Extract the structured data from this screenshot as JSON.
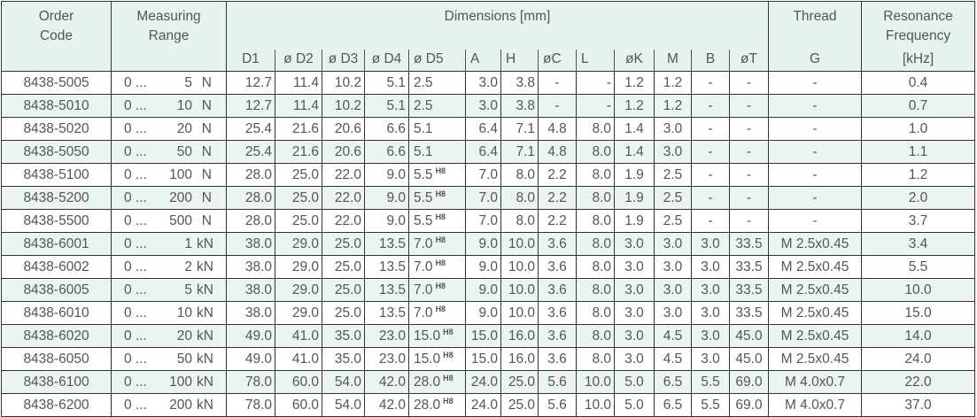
{
  "header": {
    "order_code": "Order\nCode",
    "order_code_l1": "Order",
    "order_code_l2": "Code",
    "range_l1": "Measuring",
    "range_l2": "Range",
    "dimensions": "Dimensions [mm]",
    "thread": "Thread",
    "thread_sub": "G",
    "freq_l1": "Resonance",
    "freq_l2": "Frequency",
    "freq_unit": "[kHz]",
    "dim_columns": [
      "D1",
      "ø D2",
      "ø D3",
      "ø D4",
      "ø D5",
      "A",
      "H",
      "øC",
      "L",
      "øK",
      "M",
      "B",
      "øT"
    ]
  },
  "rows": [
    {
      "code": "8438-5005",
      "range": "5",
      "unit": "N",
      "d": [
        "12.7",
        "11.4",
        "10.2",
        "5.1",
        "2.5",
        "3.0",
        "3.8",
        "-",
        "-",
        "1.2",
        "1.2",
        "-",
        "-"
      ],
      "h8": false,
      "thread": "-",
      "freq": "0.4"
    },
    {
      "code": "8438-5010",
      "range": "10",
      "unit": "N",
      "d": [
        "12.7",
        "11.4",
        "10.2",
        "5.1",
        "2.5",
        "3.0",
        "3.8",
        "-",
        "-",
        "1.2",
        "1.2",
        "-",
        "-"
      ],
      "h8": false,
      "thread": "-",
      "freq": "0.7"
    },
    {
      "code": "8438-5020",
      "range": "20",
      "unit": "N",
      "d": [
        "25.4",
        "21.6",
        "20.6",
        "6.6",
        "5.1",
        "6.4",
        "7.1",
        "4.8",
        "8.0",
        "1.4",
        "3.0",
        "-",
        "-"
      ],
      "h8": false,
      "thread": "-",
      "freq": "1.0"
    },
    {
      "code": "8438-5050",
      "range": "50",
      "unit": "N",
      "d": [
        "25.4",
        "21.6",
        "20.6",
        "6.6",
        "5.1",
        "6.4",
        "7.1",
        "4.8",
        "8.0",
        "1.4",
        "3.0",
        "-",
        "-"
      ],
      "h8": false,
      "thread": "-",
      "freq": "1.1"
    },
    {
      "code": "8438-5100",
      "range": "100",
      "unit": "N",
      "d": [
        "28.0",
        "25.0",
        "22.0",
        "9.0",
        "5.5",
        "7.0",
        "8.0",
        "2.2",
        "8.0",
        "1.9",
        "2.5",
        "-",
        "-"
      ],
      "h8": true,
      "thread": "-",
      "freq": "1.2"
    },
    {
      "code": "8438-5200",
      "range": "200",
      "unit": "N",
      "d": [
        "28.0",
        "25.0",
        "22.0",
        "9.0",
        "5.5",
        "7.0",
        "8.0",
        "2.2",
        "8.0",
        "1.9",
        "2.5",
        "-",
        "-"
      ],
      "h8": true,
      "thread": "-",
      "freq": "2.0"
    },
    {
      "code": "8438-5500",
      "range": "500",
      "unit": "N",
      "d": [
        "28.0",
        "25.0",
        "22.0",
        "9.0",
        "5.5",
        "7.0",
        "8.0",
        "2.2",
        "8.0",
        "1.9",
        "2.5",
        "-",
        "-"
      ],
      "h8": true,
      "thread": "-",
      "freq": "3.7"
    },
    {
      "code": "8438-6001",
      "range": "1",
      "unit": "kN",
      "d": [
        "38.0",
        "29.0",
        "25.0",
        "13.5",
        "7.0",
        "9.0",
        "10.0",
        "3.6",
        "8.0",
        "3.0",
        "3.0",
        "3.0",
        "33.5"
      ],
      "h8": true,
      "thread": "M 2.5x0.45",
      "freq": "3.4"
    },
    {
      "code": "8438-6002",
      "range": "2",
      "unit": "kN",
      "d": [
        "38.0",
        "29.0",
        "25.0",
        "13.5",
        "7.0",
        "9.0",
        "10.0",
        "3.6",
        "8.0",
        "3.0",
        "3.0",
        "3.0",
        "33.5"
      ],
      "h8": true,
      "thread": "M 2.5x0.45",
      "freq": "5.5"
    },
    {
      "code": "8438-6005",
      "range": "5",
      "unit": "kN",
      "d": [
        "38.0",
        "29.0",
        "25.0",
        "13.5",
        "7.0",
        "9.0",
        "10.0",
        "3.6",
        "8.0",
        "3.0",
        "3.0",
        "3.0",
        "33.5"
      ],
      "h8": true,
      "thread": "M 2.5x0.45",
      "freq": "10.0"
    },
    {
      "code": "8438-6010",
      "range": "10",
      "unit": "kN",
      "d": [
        "38.0",
        "29.0",
        "25.0",
        "13.5",
        "7.0",
        "9.0",
        "10.0",
        "3.6",
        "8.0",
        "3.0",
        "3.0",
        "3.0",
        "33.5"
      ],
      "h8": true,
      "thread": "M 2.5x0.45",
      "freq": "15.0"
    },
    {
      "code": "8438-6020",
      "range": "20",
      "unit": "kN",
      "d": [
        "49.0",
        "41.0",
        "35.0",
        "23.0",
        "15.0",
        "15.0",
        "16.0",
        "3.6",
        "8.0",
        "3.0",
        "4.5",
        "3.0",
        "45.0"
      ],
      "h8": true,
      "thread": "M 2.5x0.45",
      "freq": "14.0"
    },
    {
      "code": "8438-6050",
      "range": "50",
      "unit": "kN",
      "d": [
        "49.0",
        "41.0",
        "35.0",
        "23.0",
        "15.0",
        "15.0",
        "16.0",
        "3.6",
        "8.0",
        "3.0",
        "4.5",
        "3.0",
        "45.0"
      ],
      "h8": true,
      "thread": "M 2.5x0.45",
      "freq": "24.0"
    },
    {
      "code": "8438-6100",
      "range": "100",
      "unit": "kN",
      "d": [
        "78.0",
        "60.0",
        "54.0",
        "42.0",
        "28.0",
        "24.0",
        "25.0",
        "5.6",
        "10.0",
        "5.0",
        "6.5",
        "5.5",
        "69.0"
      ],
      "h8": true,
      "thread": "M 4.0x0.7",
      "freq": "22.0"
    },
    {
      "code": "8438-6200",
      "range": "200",
      "unit": "kN",
      "d": [
        "78.0",
        "60.0",
        "54.0",
        "42.0",
        "28.0",
        "24.0",
        "25.0",
        "5.6",
        "10.0",
        "5.0",
        "6.5",
        "5.5",
        "69.0"
      ],
      "h8": true,
      "thread": "M 4.0x0.7",
      "freq": "37.0"
    }
  ],
  "range_prefix": "0 ...",
  "tolerance_label": "H8",
  "colors": {
    "header_bg": "#e6f2ee",
    "alt_row_bg": "#eaf4f0",
    "text": "#555555",
    "border": "#333333"
  }
}
